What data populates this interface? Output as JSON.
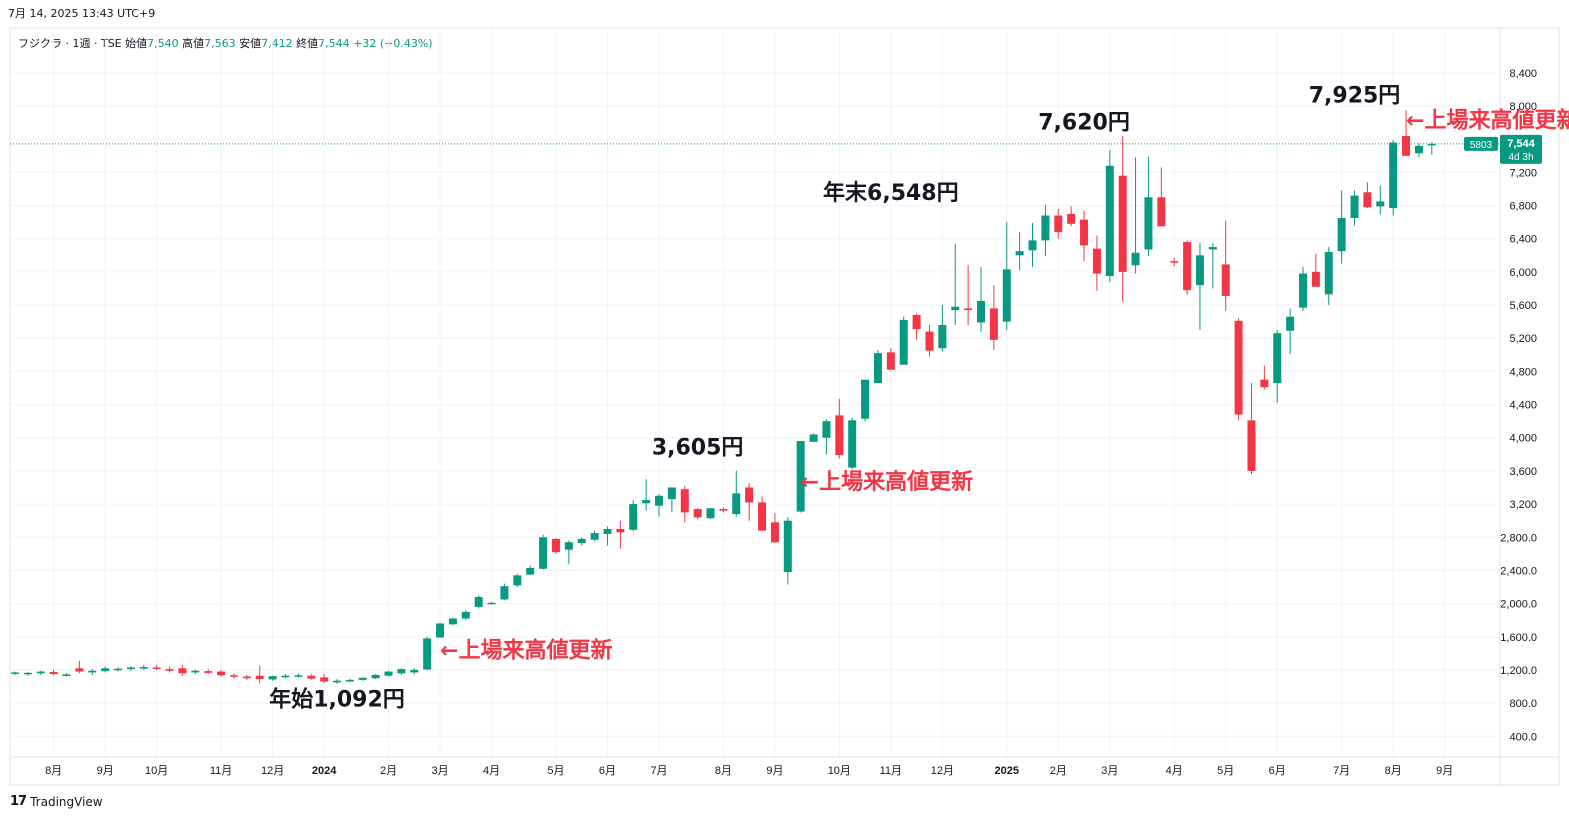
{
  "header": {
    "datetime": "7月 14, 2025 13:43 UTC+9",
    "legend": {
      "symbol": "フジクラ · 1週 · TSE",
      "open_label": "始値",
      "open": "7,540",
      "high_label": "高値",
      "high": "7,563",
      "low_label": "安値",
      "low": "7,412",
      "close_label": "終値",
      "close": "7,544",
      "change": "+32 (+0.43%)"
    }
  },
  "footer": {
    "logo": "17",
    "brand": "TradingView"
  },
  "colors": {
    "up": "#089981",
    "down": "#f23645",
    "annotation_red": "#f23645",
    "text": "#131722",
    "grid": "#f0f3fa"
  },
  "chart_data": {
    "type": "candlestick",
    "title": "",
    "ylim": [
      150,
      8700
    ],
    "y_ticks": [
      "400.0",
      "800.0",
      "1,200.0",
      "1,600.0",
      "2,000.0",
      "2,400.0",
      "2,800.0",
      "3,200",
      "3,600",
      "4,000",
      "4,400",
      "4,800",
      "5,200",
      "5,600",
      "6,000",
      "6,400",
      "6,800",
      "7,200",
      "7,600",
      "8,000",
      "8,400"
    ],
    "y_tick_values": [
      400,
      800,
      1200,
      1600,
      2000,
      2400,
      2800,
      3200,
      3600,
      4000,
      4400,
      4800,
      5200,
      5600,
      6000,
      6400,
      6800,
      7200,
      7600,
      8000,
      8400
    ],
    "x_labels": [
      "8月",
      "9月",
      "10月",
      "11月",
      "12月",
      "2024",
      "2月",
      "3月",
      "4月",
      "5月",
      "6月",
      "7月",
      "8月",
      "9月",
      "10月",
      "11月",
      "12月",
      "2025",
      "2月",
      "3月",
      "4月",
      "5月",
      "6月",
      "7月",
      "8月",
      "9月"
    ],
    "x_label_bar_index": [
      3,
      7,
      11,
      16,
      20,
      24,
      29,
      33,
      37,
      42,
      46,
      50,
      55,
      59,
      64,
      68,
      72,
      77,
      81,
      85,
      90,
      94,
      98,
      103,
      107,
      111
    ],
    "candles": [
      [
        1160,
        1180,
        1140,
        1170
      ],
      [
        1150,
        1175,
        1130,
        1165
      ],
      [
        1160,
        1190,
        1140,
        1180
      ],
      [
        1175,
        1200,
        1140,
        1150
      ],
      [
        1140,
        1160,
        1120,
        1145
      ],
      [
        1220,
        1310,
        1160,
        1180
      ],
      [
        1170,
        1210,
        1140,
        1190
      ],
      [
        1185,
        1240,
        1170,
        1220
      ],
      [
        1200,
        1230,
        1180,
        1215
      ],
      [
        1210,
        1245,
        1190,
        1230
      ],
      [
        1220,
        1260,
        1200,
        1235
      ],
      [
        1230,
        1260,
        1200,
        1215
      ],
      [
        1210,
        1240,
        1170,
        1190
      ],
      [
        1220,
        1260,
        1130,
        1160
      ],
      [
        1170,
        1200,
        1150,
        1190
      ],
      [
        1185,
        1210,
        1150,
        1165
      ],
      [
        1180,
        1200,
        1120,
        1135
      ],
      [
        1135,
        1160,
        1100,
        1120
      ],
      [
        1120,
        1140,
        1080,
        1100
      ],
      [
        1130,
        1250,
        1040,
        1090
      ],
      [
        1085,
        1130,
        1070,
        1125
      ],
      [
        1120,
        1150,
        1100,
        1130
      ],
      [
        1130,
        1160,
        1110,
        1135
      ],
      [
        1130,
        1150,
        1080,
        1095
      ],
      [
        1110,
        1150,
        1040,
        1060
      ],
      [
        1050,
        1090,
        1030,
        1070
      ],
      [
        1060,
        1090,
        1050,
        1080
      ],
      [
        1080,
        1110,
        1070,
        1105
      ],
      [
        1100,
        1150,
        1090,
        1140
      ],
      [
        1130,
        1190,
        1120,
        1180
      ],
      [
        1160,
        1220,
        1140,
        1210
      ],
      [
        1170,
        1220,
        1150,
        1200
      ],
      [
        1205,
        1600,
        1200,
        1580
      ],
      [
        1590,
        1770,
        1590,
        1760
      ],
      [
        1750,
        1830,
        1740,
        1820
      ],
      [
        1820,
        1920,
        1800,
        1900
      ],
      [
        1960,
        2100,
        1940,
        2080
      ],
      [
        2000,
        2020,
        1990,
        2010
      ],
      [
        2050,
        2240,
        2040,
        2210
      ],
      [
        2220,
        2360,
        2200,
        2340
      ],
      [
        2350,
        2460,
        2340,
        2430
      ],
      [
        2420,
        2830,
        2410,
        2800
      ],
      [
        2780,
        2790,
        2600,
        2620
      ],
      [
        2650,
        2760,
        2480,
        2740
      ],
      [
        2730,
        2800,
        2700,
        2780
      ],
      [
        2770,
        2880,
        2750,
        2850
      ],
      [
        2840,
        2930,
        2700,
        2900
      ],
      [
        2900,
        3000,
        2660,
        2860
      ],
      [
        2890,
        3250,
        2870,
        3200
      ],
      [
        3210,
        3500,
        3120,
        3250
      ],
      [
        3180,
        3320,
        3050,
        3300
      ],
      [
        3260,
        3400,
        3100,
        3400
      ],
      [
        3380,
        3420,
        2980,
        3100
      ],
      [
        3140,
        3150,
        3020,
        3040
      ],
      [
        3030,
        3150,
        3020,
        3150
      ],
      [
        3140,
        3160,
        3100,
        3120
      ],
      [
        3080,
        3600,
        3050,
        3330
      ],
      [
        3400,
        3450,
        3000,
        3220
      ],
      [
        3220,
        3290,
        2880,
        2880
      ],
      [
        2980,
        3090,
        2730,
        2740
      ],
      [
        2380,
        3040,
        2230,
        3000
      ],
      [
        3110,
        3920,
        3100,
        3960
      ],
      [
        3950,
        4050,
        3950,
        4040
      ],
      [
        4000,
        4220,
        3800,
        4200
      ],
      [
        4270,
        4470,
        3750,
        3790
      ],
      [
        3640,
        4240,
        3620,
        4210
      ],
      [
        4230,
        4700,
        4200,
        4700
      ],
      [
        4660,
        5060,
        4660,
        5020
      ],
      [
        5030,
        5080,
        4820,
        4820
      ],
      [
        4880,
        5460,
        4880,
        5420
      ],
      [
        5480,
        5500,
        5180,
        5310
      ],
      [
        5280,
        5360,
        4980,
        5050
      ],
      [
        5080,
        5600,
        5040,
        5360
      ],
      [
        5540,
        6340,
        5360,
        5580
      ],
      [
        5560,
        6080,
        5360,
        5540
      ],
      [
        5390,
        6060,
        5280,
        5650
      ],
      [
        5560,
        5840,
        5060,
        5180
      ],
      [
        5400,
        6600,
        5300,
        6030
      ],
      [
        6200,
        6480,
        6020,
        6250
      ],
      [
        6260,
        6590,
        6060,
        6380
      ],
      [
        6380,
        6810,
        6190,
        6680
      ],
      [
        6680,
        6760,
        6400,
        6480
      ],
      [
        6700,
        6790,
        6550,
        6580
      ],
      [
        6630,
        6740,
        6130,
        6320
      ],
      [
        6280,
        6440,
        5770,
        5980
      ],
      [
        5950,
        7470,
        5880,
        7280
      ],
      [
        7160,
        7640,
        5640,
        6000
      ],
      [
        6080,
        7380,
        5980,
        6230
      ],
      [
        6270,
        7390,
        6190,
        6900
      ],
      [
        6900,
        7260,
        6560,
        6550
      ],
      [
        6130,
        6170,
        6070,
        6120
      ],
      [
        6360,
        6380,
        5720,
        5780
      ],
      [
        5840,
        6350,
        5300,
        6200
      ],
      [
        6270,
        6350,
        5800,
        6300
      ],
      [
        6090,
        6620,
        5530,
        5710
      ],
      [
        5410,
        5440,
        4210,
        4280
      ],
      [
        4210,
        4660,
        3560,
        3600
      ],
      [
        4700,
        4870,
        4580,
        4610
      ],
      [
        4660,
        5300,
        4420,
        5260
      ],
      [
        5290,
        5560,
        5010,
        5460
      ],
      [
        5570,
        6060,
        5530,
        5980
      ],
      [
        6000,
        6220,
        5840,
        5820
      ],
      [
        5730,
        6300,
        5600,
        6240
      ],
      [
        6250,
        6980,
        6100,
        6650
      ],
      [
        6650,
        6980,
        6560,
        6920
      ],
      [
        6960,
        7080,
        6770,
        6780
      ],
      [
        6790,
        7040,
        6690,
        6850
      ],
      [
        6770,
        7590,
        6680,
        7560
      ],
      [
        7640,
        7950,
        7440,
        7400
      ],
      [
        7430,
        7550,
        7380,
        7520
      ],
      [
        7540,
        7563,
        7412,
        7544
      ]
    ],
    "last_price": {
      "value": 7544,
      "label": "7,544",
      "time_left": "4d 3h",
      "marker": "5803"
    },
    "annotations": [
      {
        "text": "年始1,092円",
        "color": "#131722",
        "bar": 25,
        "price": 760
      },
      {
        "text": "←上場来高値更新",
        "color": "#f23645",
        "bar": 33,
        "price": 1350
      },
      {
        "text": "3,605円",
        "color": "#131722",
        "bar": 53,
        "price": 3800
      },
      {
        "text": "←上場来高値更新",
        "color": "#f23645",
        "bar": 61,
        "price": 3380
      },
      {
        "text": "年末6,548円",
        "color": "#131722",
        "bar": 68,
        "price": 6870
      },
      {
        "text": "7,620円",
        "color": "#131722",
        "bar": 83,
        "price": 7720
      },
      {
        "text": "7,925円",
        "color": "#131722",
        "bar": 104,
        "price": 8040
      },
      {
        "text": "←上場来高値更新",
        "color": "#f23645",
        "bar": 108,
        "price": 7740
      }
    ]
  }
}
